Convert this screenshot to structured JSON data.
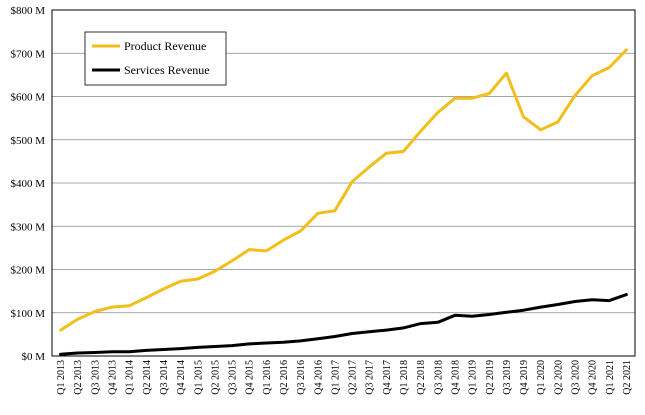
{
  "chart_data": {
    "type": "line",
    "title": "",
    "xlabel": "",
    "ylabel": "",
    "grid": "horizontal",
    "legend_position": "top-left",
    "ylim": [
      0,
      800
    ],
    "y_ticks": [
      0,
      100,
      200,
      300,
      400,
      500,
      600,
      700,
      800
    ],
    "y_tick_labels": [
      "$0 M",
      "$100 M",
      "$200 M",
      "$300 M",
      "$400 M",
      "$500 M",
      "$600 M",
      "$700 M",
      "$800 M"
    ],
    "categories": [
      "Q1 2013",
      "Q2 2013",
      "Q3 2013",
      "Q4 2013",
      "Q1 2014",
      "Q2 2014",
      "Q3 2014",
      "Q4 2014",
      "Q1 2015",
      "Q2 2015",
      "Q3 2015",
      "Q4 2015",
      "Q1 2016",
      "Q2 2016",
      "Q3 2016",
      "Q4 2016",
      "Q1 2017",
      "Q2 2017",
      "Q3 2017",
      "Q4 2017",
      "Q1 2018",
      "Q2 2018",
      "Q3 2018",
      "Q4 2018",
      "Q1 2019",
      "Q2 2019",
      "Q3 2019",
      "Q4 2019",
      "Q1 2020",
      "Q2 2020",
      "Q3 2020",
      "Q4 2020",
      "Q1 2021",
      "Q2 2021"
    ],
    "series": [
      {
        "name": "Product Revenue",
        "color": "#F2BE1A",
        "values": [
          60,
          85,
          103,
          113,
          116,
          135,
          155,
          173,
          178,
          196,
          220,
          246,
          243,
          268,
          289,
          330,
          336,
          403,
          437,
          469,
          473,
          520,
          563,
          596,
          596,
          607,
          654,
          553,
          523,
          541,
          602,
          648,
          667,
          708
        ]
      },
      {
        "name": "Services Revenue",
        "color": "#000000",
        "values": [
          4,
          7,
          8,
          10,
          10,
          13,
          15,
          17,
          20,
          22,
          24,
          28,
          30,
          32,
          35,
          40,
          45,
          52,
          56,
          60,
          65,
          75,
          78,
          94,
          92,
          96,
          101,
          106,
          113,
          119,
          126,
          130,
          128,
          142
        ]
      }
    ]
  }
}
